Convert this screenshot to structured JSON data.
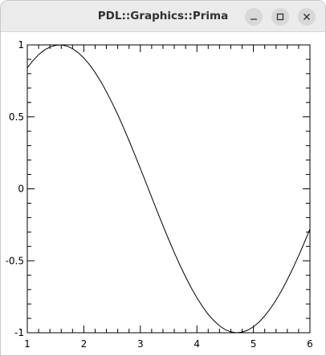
{
  "window": {
    "title": "PDL::Graphics::Prima",
    "buttons": {
      "minimize": "minimize",
      "maximize": "maximize",
      "close": "close"
    }
  },
  "chart_data": {
    "type": "line",
    "title": "",
    "xlabel": "",
    "ylabel": "",
    "xlim": [
      1,
      6
    ],
    "ylim": [
      -1,
      1
    ],
    "x_ticks": [
      "1",
      "2",
      "3",
      "4",
      "5",
      "6"
    ],
    "y_ticks": [
      "1",
      "0.5",
      "0",
      "-0.5",
      "-1"
    ],
    "grid": false,
    "series": [
      {
        "function": "sin(x)",
        "x": [
          1.0,
          1.1,
          1.2,
          1.3,
          1.4,
          1.5,
          1.6,
          1.7,
          1.8,
          1.9,
          2.0,
          2.1,
          2.2,
          2.3,
          2.4,
          2.5,
          2.6,
          2.7,
          2.8,
          2.9,
          3.0,
          3.1,
          3.2,
          3.3,
          3.4,
          3.5,
          3.6,
          3.7,
          3.8,
          3.9,
          4.0,
          4.1,
          4.2,
          4.3,
          4.4,
          4.5,
          4.6,
          4.7,
          4.8,
          4.9,
          5.0,
          5.1,
          5.2,
          5.3,
          5.4,
          5.5,
          5.6,
          5.7,
          5.8,
          5.9,
          6.0
        ],
        "y": [
          0.841,
          0.891,
          0.932,
          0.964,
          0.985,
          0.997,
          1.0,
          0.992,
          0.974,
          0.946,
          0.909,
          0.863,
          0.808,
          0.746,
          0.675,
          0.598,
          0.516,
          0.427,
          0.335,
          0.239,
          0.141,
          0.042,
          -0.058,
          -0.158,
          -0.256,
          -0.351,
          -0.443,
          -0.53,
          -0.612,
          -0.688,
          -0.757,
          -0.818,
          -0.872,
          -0.916,
          -0.952,
          -0.978,
          -0.994,
          -1.0,
          -0.996,
          -0.982,
          -0.959,
          -0.926,
          -0.883,
          -0.832,
          -0.773,
          -0.706,
          -0.631,
          -0.551,
          -0.465,
          -0.374,
          -0.279
        ]
      }
    ],
    "colors": {
      "line": "#000000",
      "axes": "#000000",
      "background": "#ffffff"
    }
  }
}
